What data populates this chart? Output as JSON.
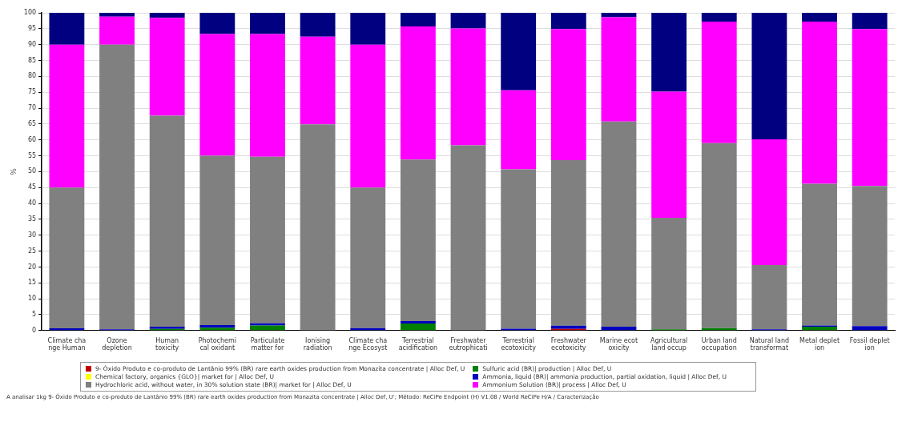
{
  "chart_data": {
    "type": "bar",
    "stacked": true,
    "ylabel": "%",
    "categories": [
      "Climate cha\nnge Human",
      "Ozone\ndepletion",
      "Human\ntoxicity",
      "Photochemi\ncal oxidant",
      "Particulate\nmatter for",
      "Ionising\nradiation",
      "Climate cha\nnge Ecosyst",
      "Terrestrial\nacidification",
      "Freshwater\neutrophicati",
      "Terrestrial\necotoxicity",
      "Freshwater\necotoxicity",
      "Marine ecot\noxicity",
      "Agricultural\nland occup",
      "Urban land\noccupation",
      "Natural land\ntransformat",
      "Metal deplet\nion",
      "Fossil deplet\nion"
    ],
    "series": [
      {
        "name": "9- Óxido Produto e co-produto de Lantânio 99% (BR) rare earth oxides production from Monazita concentrate | Alloc Def, U",
        "color": "#c00000",
        "values": [
          0,
          0,
          0,
          0,
          0,
          0,
          0,
          0,
          0,
          0,
          0.5,
          0,
          0,
          0,
          0,
          0,
          0
        ]
      },
      {
        "name": "Sulfuric acid (BR)| production | Alloc Def, U",
        "color": "#008000",
        "values": [
          0,
          0,
          0.5,
          0.9,
          1.6,
          0,
          0,
          2.2,
          null,
          0,
          0,
          0,
          0.4,
          0.8,
          null,
          1.2,
          0
        ]
      },
      {
        "name": "Chemical factory, organics {GLO}| market for | Alloc Def, U",
        "color": "#ffff00",
        "values": [
          0,
          0,
          0,
          0,
          0,
          0,
          0,
          0,
          0,
          0,
          0,
          0,
          0,
          0,
          0,
          0,
          0
        ]
      },
      {
        "name": "Ammonia, liquid (BR)| ammonia production, partial oxidation, liquid | Alloc Def, U",
        "color": "#0000c0",
        "values": [
          0.7,
          0.4,
          0.7,
          0.8,
          0.7,
          null,
          0.8,
          0.8,
          0,
          0.6,
          1.0,
          1.2,
          0,
          0,
          0.4,
          0.4,
          1.4
        ]
      },
      {
        "name": "Hydrochloric acid, without water, in 30% solution state (BR)| market for | Alloc Def, U",
        "color": "#808080",
        "values": [
          44.3,
          89.6,
          66.4,
          53.3,
          52.4,
          64.9,
          44.2,
          50.8,
          58.3,
          50.1,
          52.1,
          64.6,
          35.1,
          58.2,
          20.2,
          44.6,
          44.1
        ]
      },
      {
        "name": "Ammonium Solution (BR)| process | Alloc Def, U",
        "color": "#ff00ff",
        "values": [
          45,
          8.8,
          30.8,
          38.3,
          38.6,
          27.6,
          45,
          41.9,
          36.8,
          24.9,
          41.3,
          32.8,
          39.7,
          38.2,
          39.6,
          51,
          49.4
        ]
      },
      {
        "color": "#000080",
        "values": [
          10,
          1.2,
          1.6,
          6.7,
          6.7,
          7.5,
          10,
          4.3,
          4.9,
          24.4,
          5.1,
          1.4,
          24.8,
          2.8,
          39.8,
          2.8,
          5.1
        ]
      }
    ],
    "ylim": [
      0,
      100
    ],
    "yticks": [
      0,
      5,
      10,
      15,
      20,
      25,
      30,
      35,
      40,
      45,
      50,
      55,
      60,
      65,
      70,
      75,
      80,
      85,
      90,
      95,
      100
    ],
    "grid": "y",
    "legend": "bottom",
    "annotations": [
      "A analisar 1kg 9- Óxido Produto e co-produto de Lantânio 99% (BR) rare earth oxides production from Monazita concentrate | Alloc Def, U'; Método: ReCiPe Endpoint (H) V1.08 / World ReCiPe H/A / Caracterização"
    ]
  }
}
